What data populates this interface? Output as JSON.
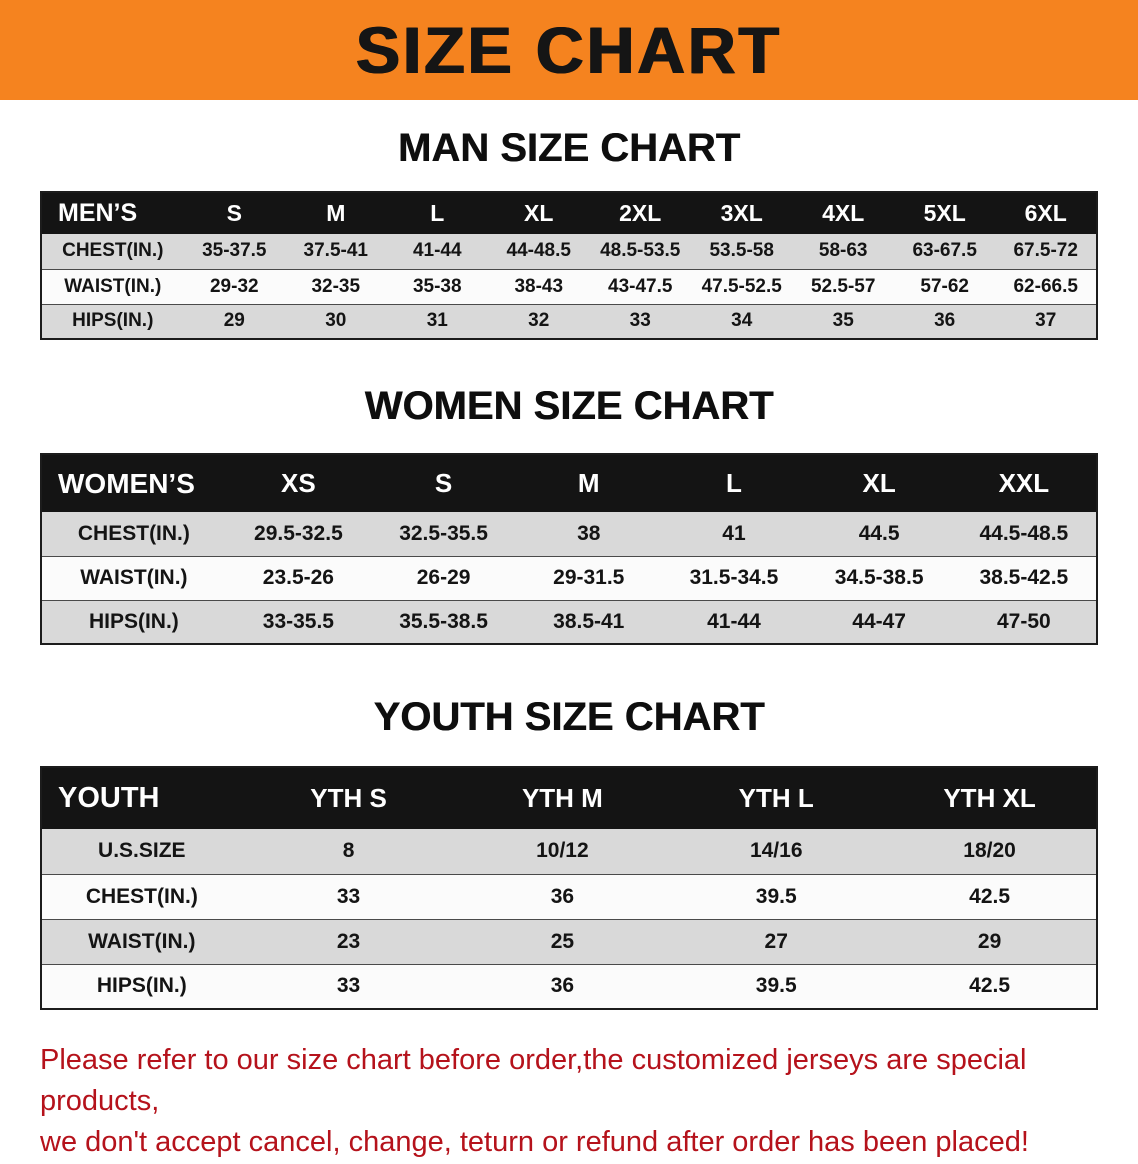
{
  "banner": {
    "title": "SIZE CHART"
  },
  "theme": {
    "banner_bg": "#f5831f",
    "header_bg": "#141414",
    "stripe_gray": "#d9d9d9",
    "warning_red": "#b5121b"
  },
  "sections": [
    {
      "heading": "MAN SIZE CHART",
      "table": {
        "header": [
          "MEN’S",
          "S",
          "M",
          "L",
          "XL",
          "2XL",
          "3XL",
          "4XL",
          "5XL",
          "6XL"
        ],
        "rows": [
          [
            "CHEST(IN.)",
            "35-37.5",
            "37.5-41",
            "41-44",
            "44-48.5",
            "48.5-53.5",
            "53.5-58",
            "58-63",
            "63-67.5",
            "67.5-72"
          ],
          [
            "WAIST(IN.)",
            "29-32",
            "32-35",
            "35-38",
            "38-43",
            "43-47.5",
            "47.5-52.5",
            "52.5-57",
            "57-62",
            "62-66.5"
          ],
          [
            "HIPS(IN.)",
            "29",
            "30",
            "31",
            "32",
            "33",
            "34",
            "35",
            "36",
            "37"
          ]
        ]
      }
    },
    {
      "heading": "WOMEN SIZE CHART",
      "table": {
        "header": [
          "WOMEN’S",
          "XS",
          "S",
          "M",
          "L",
          "XL",
          "XXL"
        ],
        "rows": [
          [
            "CHEST(IN.)",
            "29.5-32.5",
            "32.5-35.5",
            "38",
            "41",
            "44.5",
            "44.5-48.5"
          ],
          [
            "WAIST(IN.)",
            "23.5-26",
            "26-29",
            "29-31.5",
            "31.5-34.5",
            "34.5-38.5",
            "38.5-42.5"
          ],
          [
            "HIPS(IN.)",
            "33-35.5",
            "35.5-38.5",
            "38.5-41",
            "41-44",
            "44-47",
            "47-50"
          ]
        ]
      }
    },
    {
      "heading": "YOUTH SIZE CHART",
      "table": {
        "header": [
          "YOUTH",
          "YTH S",
          "YTH M",
          "YTH L",
          "YTH XL"
        ],
        "rows": [
          [
            "U.S.SIZE",
            "8",
            "10/12",
            "14/16",
            "18/20"
          ],
          [
            "CHEST(IN.)",
            "33",
            "36",
            "39.5",
            "42.5"
          ],
          [
            "WAIST(IN.)",
            "23",
            "25",
            "27",
            "29"
          ],
          [
            "HIPS(IN.)",
            "33",
            "36",
            "39.5",
            "42.5"
          ]
        ]
      }
    }
  ],
  "footer": {
    "line1": "Please refer to our size chart before order,the customized jerseys are special products,",
    "line2": "we don't accept cancel, change, teturn or refund after order has been placed!"
  }
}
